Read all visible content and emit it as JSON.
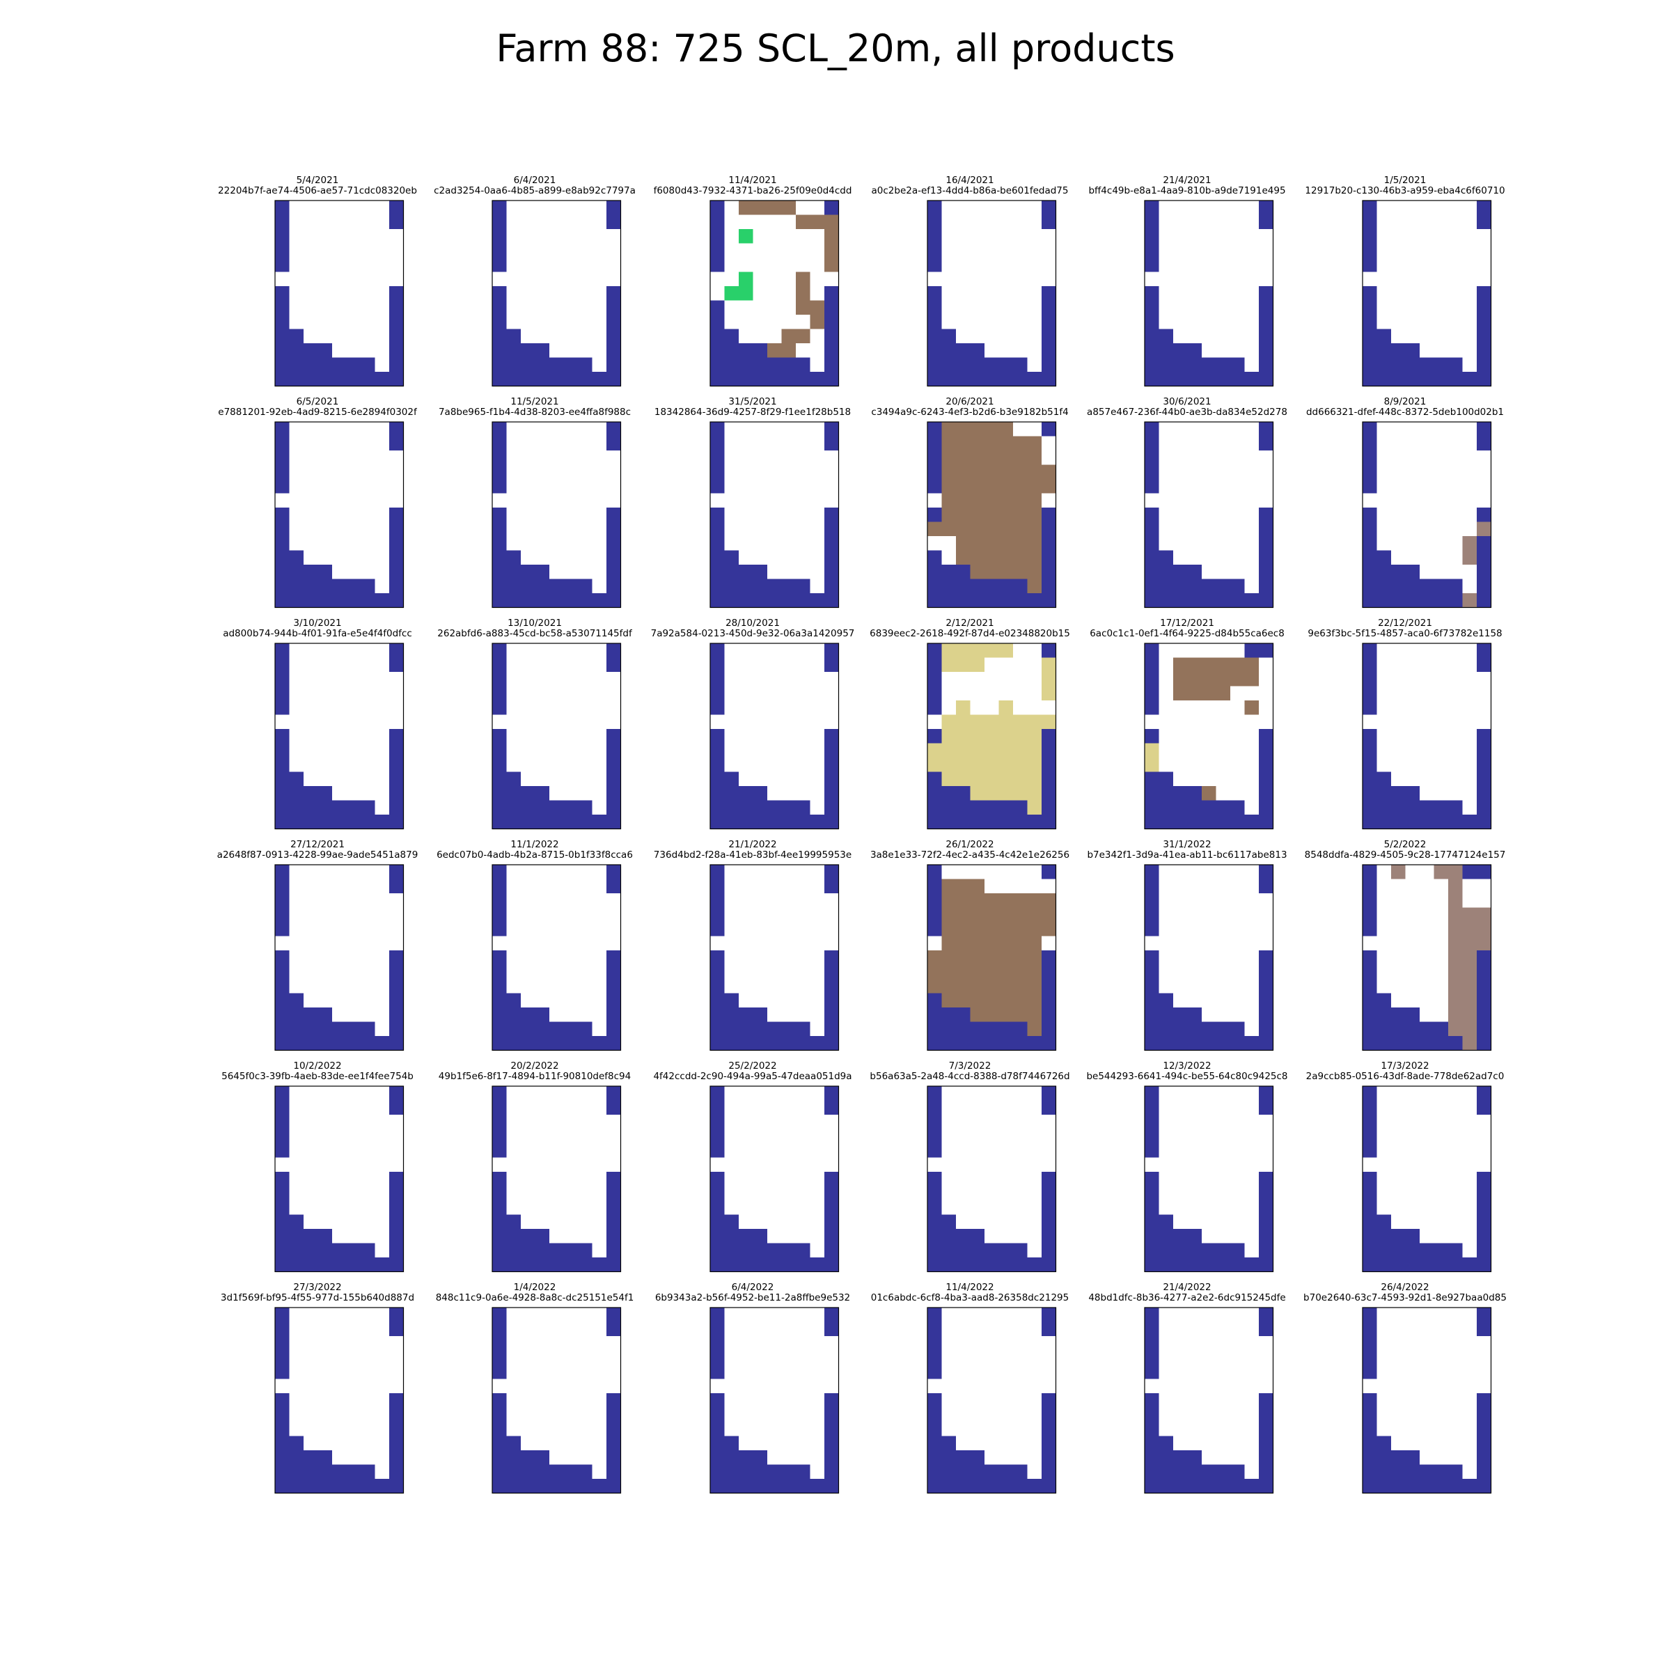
{
  "title": "Farm 88: 725 SCL_20m, all products",
  "colors": {
    "blue": "#35359a",
    "white": "#ffffff",
    "brown": "#93735b",
    "taupe": "#9d8279",
    "green": "#29d06a",
    "khaki": "#dcd28c"
  },
  "grid_rows": 6,
  "grid_cols": 6,
  "chart_data": {
    "type": "heatmap",
    "cell_rows": 13,
    "cell_cols": 9,
    "legend": "W = blue, . = white, B = brown, T = taupe, G = green, Y = khaki",
    "base_pattern": [
      "W.......W",
      "W.......W",
      "W........",
      "W........",
      "W........",
      ".........",
      "W.......W",
      "W.......W",
      "W.......W",
      "WW......W",
      "WWWW....W",
      "WWWWWWW.W",
      "WWWWWWWWW"
    ],
    "panels": [
      {
        "date": "5/4/2021",
        "id": "22204b7f-ae74-4506-ae57-71cdc08320eb"
      },
      {
        "date": "6/4/2021",
        "id": "c2ad3254-0aa6-4b85-a899-e8ab92c7797a"
      },
      {
        "date": "11/4/2021",
        "id": "f6080d43-7932-4371-ba26-25f09e0d4cdd",
        "pattern": [
          "W.BBBB..W",
          "W.....BBB",
          "W.G.....B",
          "W.......B",
          "W.......B",
          "..G...B..",
          ".GG...B.W",
          "W.....BBW",
          "W......BW",
          "WW...BB.W",
          "WWWWBB..W",
          "WWWWWWW.W",
          "WWWWWWWWW"
        ]
      },
      {
        "date": "16/4/2021",
        "id": "a0c2be2a-ef13-4dd4-b86a-be601fedad75"
      },
      {
        "date": "21/4/2021",
        "id": "bff4c49b-e8a1-4aa9-810b-a9de7191e495"
      },
      {
        "date": "1/5/2021",
        "id": "12917b20-c130-46b3-a959-eba4c6f60710"
      },
      {
        "date": "6/5/2021",
        "id": "e7881201-92eb-4ad9-8215-6e2894f0302f"
      },
      {
        "date": "11/5/2021",
        "id": "7a8be965-f1b4-4d38-8203-ee4ffa8f988c"
      },
      {
        "date": "31/5/2021",
        "id": "18342864-36d9-4257-8f29-f1ee1f28b518"
      },
      {
        "date": "20/6/2021",
        "id": "c3494a9c-6243-4ef3-b2d6-b3e9182b51f4",
        "pattern": [
          "WBBBBB..W",
          "WBBBBBBB.",
          "WBBBBBBB.",
          "WBBBBBBBB",
          "WBBBBBBBB",
          ".BBBBBBB.",
          "WBBBBBBBW",
          "BBBBBBBBW",
          "..BBBBBBW",
          "W.BBBBBBW",
          "WWWBBBBBW",
          "WWWWWWWBW",
          "WWWWWWWWW"
        ]
      },
      {
        "date": "30/6/2021",
        "id": "a857e467-236f-44b0-ae3b-da834e52d278"
      },
      {
        "date": "8/9/2021",
        "id": "dd666321-dfef-448c-8372-5deb100d02b1",
        "pattern": [
          "W.......W",
          "W.......W",
          "W........",
          "W........",
          "W........",
          ".........",
          "W.......W",
          "W.......T",
          "W......TW",
          "WW.....TW",
          "WWWW....W",
          "WWWWWWW.W",
          "WWWWWWWTW"
        ]
      },
      {
        "date": "3/10/2021",
        "id": "ad800b74-944b-4f01-91fa-e5e4f4f0dfcc"
      },
      {
        "date": "13/10/2021",
        "id": "262abfd6-a883-45cd-bc58-a53071145fdf"
      },
      {
        "date": "28/10/2021",
        "id": "7a92a584-0213-450d-9e32-06a3a1420957"
      },
      {
        "date": "2/12/2021",
        "id": "6839eec2-2618-492f-87d4-e02348820b15",
        "pattern": [
          "WYYYYY..W",
          "WYYY....Y",
          "W.......Y",
          "W.......Y",
          "W.Y..Y...",
          ".YYYYYYYY",
          "WYYYYYYYW",
          "YYYYYYYYW",
          "YYYYYYYYW",
          "WYYYYYYYW",
          "WWWYYYYYW",
          "WWWWWWWYW",
          "WWWWWWWWW"
        ]
      },
      {
        "date": "17/12/2021",
        "id": "6ac0c1c1-0ef1-4f64-9225-d84b55ca6ec8",
        "pattern": [
          "W......WW",
          "W.BBBBBB.",
          "W.BBBBBB.",
          "W.BBBB...",
          "W......B.",
          ".........",
          "W.......W",
          "Y.......W",
          "Y.......W",
          "WW......W",
          "WWWWB...W",
          "WWWWWWW.W",
          "WWWWWWWWW"
        ]
      },
      {
        "date": "22/12/2021",
        "id": "9e63f3bc-5f15-4857-aca0-6f73782e1158"
      },
      {
        "date": "27/12/2021",
        "id": "a2648f87-0913-4228-99ae-9ade5451a879"
      },
      {
        "date": "11/1/2022",
        "id": "6edc07b0-4adb-4b2a-8715-0b1f33f8cca6"
      },
      {
        "date": "21/1/2022",
        "id": "736d4bd2-f28a-41eb-83bf-4ee19995953e"
      },
      {
        "date": "26/1/2022",
        "id": "3a8e1e33-72f2-4ec2-a435-4c42e1e26256",
        "pattern": [
          "W.......W",
          "WBBB.....",
          "WBBBBBBBB",
          "WBBBBBBBB",
          "WBBBBBBBB",
          ".BBBBBBB.",
          "BBBBBBBBW",
          "BBBBBBBBW",
          "BBBBBBBBW",
          "WBBBBBBBW",
          "WWWBBBBBW",
          "WWWWWWWBW",
          "WWWWWWWWW"
        ]
      },
      {
        "date": "31/1/2022",
        "id": "b7e342f1-3d9a-41ea-ab11-bc6117abe813"
      },
      {
        "date": "5/2/2022",
        "id": "8548ddfa-4829-4505-9c28-17747124e157",
        "pattern": [
          "W.T..TTWW",
          "W.....T..",
          "W.....T..",
          "W.....TTT",
          "W.....TTT",
          "......TTT",
          "W.....TTW",
          "W.....TTW",
          "W.....TTW",
          "WW....TTW",
          "WWWW..TTW",
          "WWWWWWTTW",
          "WWWWWWWTW"
        ]
      },
      {
        "date": "10/2/2022",
        "id": "5645f0c3-39fb-4aeb-83de-ee1f4fee754b"
      },
      {
        "date": "20/2/2022",
        "id": "49b1f5e6-8f17-4894-b11f-90810def8c94"
      },
      {
        "date": "25/2/2022",
        "id": "4f42ccdd-2c90-494a-99a5-47deaa051d9a"
      },
      {
        "date": "7/3/2022",
        "id": "b56a63a5-2a48-4ccd-8388-d78f7446726d"
      },
      {
        "date": "12/3/2022",
        "id": "be544293-6641-494c-be55-64c80c9425c8"
      },
      {
        "date": "17/3/2022",
        "id": "2a9ccb85-0516-43df-8ade-778de62ad7c0"
      },
      {
        "date": "27/3/2022",
        "id": "3d1f569f-bf95-4f55-977d-155b640d887d"
      },
      {
        "date": "1/4/2022",
        "id": "848c11c9-0a6e-4928-8a8c-dc25151e54f1"
      },
      {
        "date": "6/4/2022",
        "id": "6b9343a2-b56f-4952-be11-2a8ffbe9e532"
      },
      {
        "date": "11/4/2022",
        "id": "01c6abdc-6cf8-4ba3-aad8-26358dc21295"
      },
      {
        "date": "21/4/2022",
        "id": "48bd1dfc-8b36-4277-a2e2-6dc915245dfe"
      },
      {
        "date": "26/4/2022",
        "id": "b70e2640-63c7-4593-92d1-8e927baa0d85"
      }
    ]
  }
}
